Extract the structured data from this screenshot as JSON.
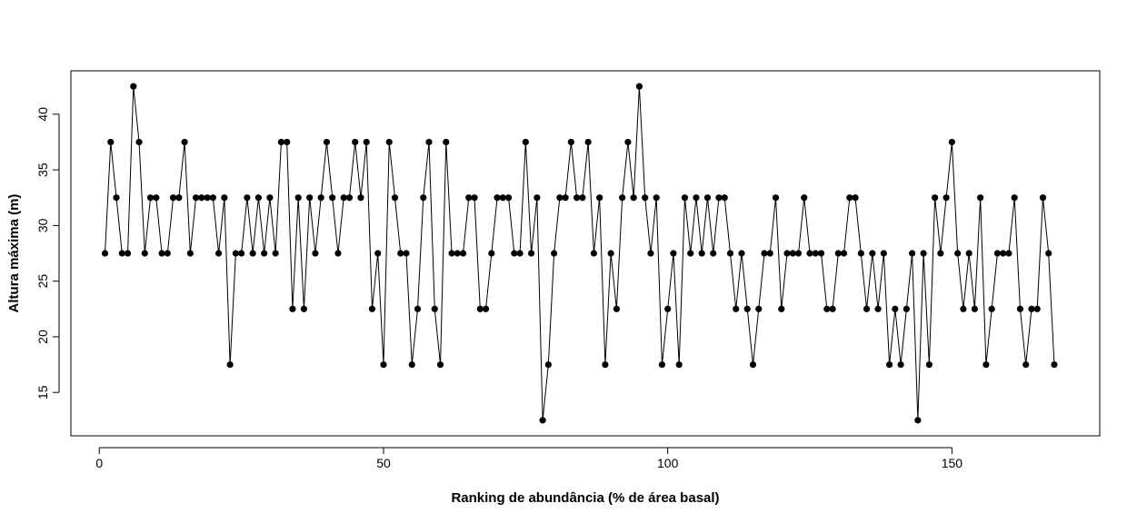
{
  "chart_data": {
    "type": "line",
    "title": "",
    "xlabel": "Ranking de abundância (% de área basal)",
    "ylabel": "Altura máxima (m)",
    "xlim": [
      -5,
      176
    ],
    "ylim": [
      11.1,
      43.9
    ],
    "xticks": [
      0,
      50,
      100,
      150
    ],
    "yticks": [
      15,
      20,
      25,
      30,
      35,
      40
    ],
    "grid": false,
    "legend": "none",
    "line_color": "#000000",
    "marker": "filled-circle",
    "series": [
      {
        "x": [
          1,
          2,
          3,
          4,
          5,
          6,
          7,
          8,
          9,
          10,
          11,
          12,
          13,
          14,
          15,
          16,
          17,
          18,
          19,
          20,
          21,
          22,
          23,
          24,
          25,
          26,
          27,
          28,
          29,
          30,
          31,
          32,
          33,
          34,
          35,
          36,
          37,
          38,
          39,
          40,
          41,
          42,
          43,
          44,
          45,
          46,
          47,
          48,
          49,
          50,
          51,
          52,
          53,
          54,
          55,
          56,
          57,
          58,
          59,
          60,
          61,
          62,
          63,
          64,
          65,
          66,
          67,
          68,
          69,
          70,
          71,
          72,
          73,
          74,
          75,
          76,
          77,
          78,
          79,
          80,
          81,
          82,
          83,
          84,
          85,
          86,
          87,
          88,
          89,
          90,
          91,
          92,
          93,
          94,
          95,
          96,
          97,
          98,
          99,
          100,
          101,
          102,
          103,
          104,
          105,
          106,
          107,
          108,
          109,
          110,
          111,
          112,
          113,
          114,
          115,
          116,
          117,
          118,
          119,
          120,
          121,
          122,
          123,
          124,
          125,
          126,
          127,
          128,
          129,
          130,
          131,
          132,
          133,
          134,
          135,
          136,
          137,
          138,
          139,
          140,
          141,
          142,
          143,
          144,
          145,
          146,
          147,
          148,
          149,
          150,
          151,
          152,
          153,
          154,
          155,
          156,
          157,
          158,
          159,
          160,
          161,
          162,
          163,
          164,
          165,
          166,
          167,
          168
        ],
        "y": [
          27.5,
          37.5,
          32.5,
          27.5,
          27.5,
          42.5,
          37.5,
          27.5,
          32.5,
          32.5,
          27.5,
          27.5,
          32.5,
          32.5,
          37.5,
          27.5,
          32.5,
          32.5,
          32.5,
          32.5,
          27.5,
          32.5,
          17.5,
          27.5,
          27.5,
          32.5,
          27.5,
          32.5,
          27.5,
          32.5,
          27.5,
          37.5,
          37.5,
          22.5,
          32.5,
          22.5,
          32.5,
          27.5,
          32.5,
          37.5,
          32.5,
          27.5,
          32.5,
          32.5,
          37.5,
          32.5,
          37.5,
          22.5,
          27.5,
          17.5,
          37.5,
          32.5,
          27.5,
          27.5,
          17.5,
          22.5,
          32.5,
          37.5,
          22.5,
          17.5,
          37.5,
          27.5,
          27.5,
          27.5,
          32.5,
          32.5,
          22.5,
          22.5,
          27.5,
          32.5,
          32.5,
          32.5,
          27.5,
          27.5,
          37.5,
          27.5,
          32.5,
          12.5,
          17.5,
          27.5,
          32.5,
          32.5,
          37.5,
          32.5,
          32.5,
          37.5,
          27.5,
          32.5,
          17.5,
          27.5,
          22.5,
          32.5,
          37.5,
          32.5,
          42.5,
          32.5,
          27.5,
          32.5,
          17.5,
          22.5,
          27.5,
          17.5,
          32.5,
          27.5,
          32.5,
          27.5,
          32.5,
          27.5,
          32.5,
          32.5,
          27.5,
          22.5,
          27.5,
          22.5,
          17.5,
          22.5,
          27.5,
          27.5,
          32.5,
          22.5,
          27.5,
          27.5,
          27.5,
          32.5,
          27.5,
          27.5,
          27.5,
          22.5,
          22.5,
          27.5,
          27.5,
          32.5,
          32.5,
          27.5,
          22.5,
          27.5,
          22.5,
          27.5,
          17.5,
          22.5,
          17.5,
          22.5,
          27.5,
          12.5,
          27.5,
          17.5,
          32.5,
          27.5,
          32.5,
          37.5,
          27.5,
          22.5,
          27.5,
          22.5,
          32.5,
          17.5,
          22.5,
          27.5,
          27.5,
          27.5,
          32.5,
          22.5,
          17.5,
          22.5,
          22.5,
          32.5,
          27.5,
          17.5
        ]
      }
    ]
  }
}
